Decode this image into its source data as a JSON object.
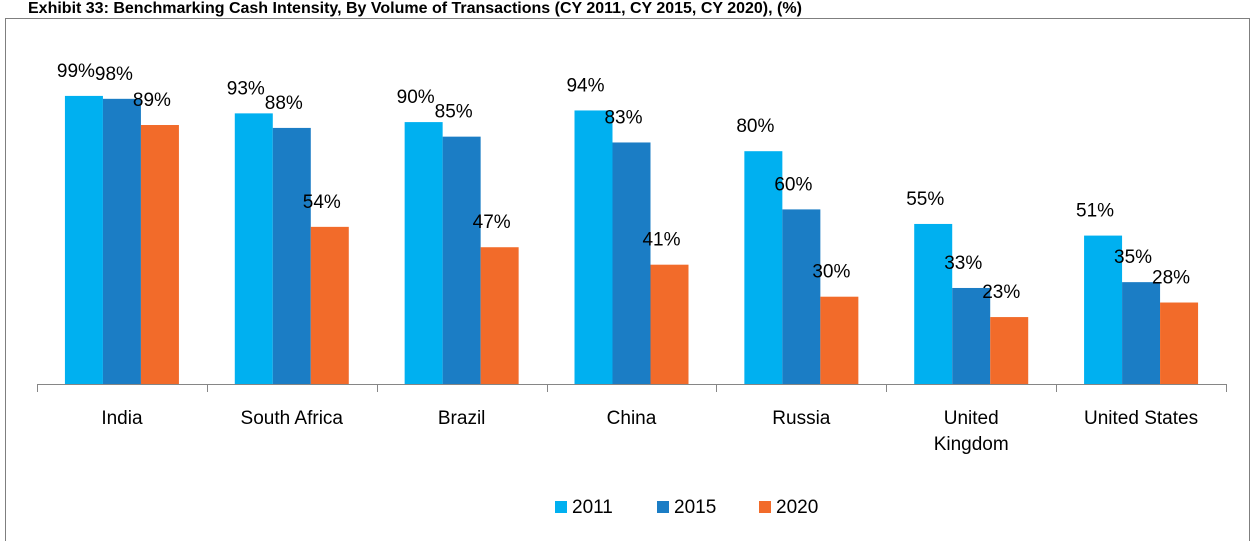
{
  "chart_data": {
    "type": "bar",
    "title": "Exhibit 33: Benchmarking Cash Intensity, By Volume of Transactions (CY 2011, CY 2015, CY 2020), (%)",
    "categories": [
      "India",
      "South Africa",
      "Brazil",
      "China",
      "Russia",
      "United Kingdom",
      "United States"
    ],
    "series": [
      {
        "name": "2011",
        "color": "#00b0f0",
        "values": [
          99,
          93,
          90,
          94,
          80,
          55,
          51
        ],
        "value_labels": [
          "99%",
          "93%",
          "90%",
          "94%",
          "80%",
          "55%",
          "51%"
        ]
      },
      {
        "name": "2015",
        "color": "#1b7dc5",
        "values": [
          98,
          88,
          85,
          83,
          60,
          33,
          35
        ],
        "value_labels": [
          "98%",
          "88%",
          "85%",
          "83%",
          "60%",
          "33%",
          "35%"
        ]
      },
      {
        "name": "2020",
        "color": "#f26b2a",
        "values": [
          89,
          54,
          47,
          41,
          30,
          23,
          28
        ],
        "value_labels": [
          "89%",
          "54%",
          "47%",
          "41%",
          "30%",
          "23%",
          "28%"
        ]
      }
    ],
    "ylim": [
      0,
      100
    ],
    "legend": "bottom"
  }
}
